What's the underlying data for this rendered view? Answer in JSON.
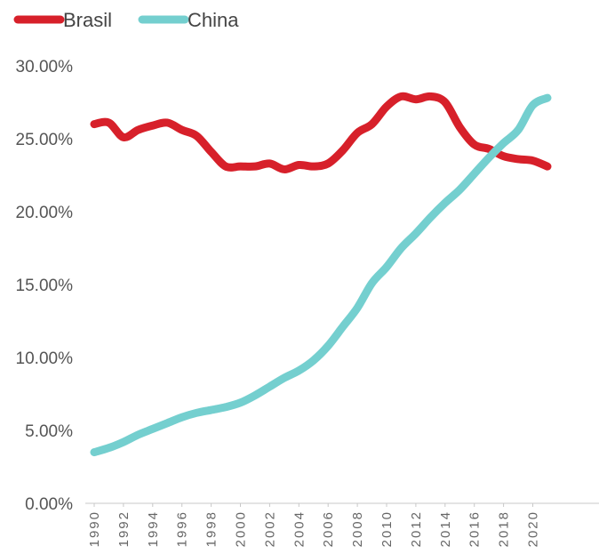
{
  "chart_data": {
    "type": "line",
    "title": "",
    "xlabel": "",
    "ylabel": "",
    "x": [
      1990,
      1991,
      1992,
      1993,
      1994,
      1995,
      1996,
      1997,
      1998,
      1999,
      2000,
      2001,
      2002,
      2003,
      2004,
      2005,
      2006,
      2007,
      2008,
      2009,
      2010,
      2011,
      2012,
      2013,
      2014,
      2015,
      2016,
      2017,
      2018,
      2019,
      2020,
      2021
    ],
    "xtick_labels": [
      "1990",
      "1992",
      "1994",
      "1996",
      "1998",
      "2000",
      "2002",
      "2004",
      "2006",
      "2008",
      "2010",
      "2012",
      "2014",
      "2016",
      "2018",
      "2020"
    ],
    "ylim": [
      0,
      30
    ],
    "ytick_labels": [
      "0.00%",
      "5.00%",
      "10.00%",
      "15.00%",
      "20.00%",
      "25.00%",
      "30.00%"
    ],
    "yticks": [
      0,
      5,
      10,
      15,
      20,
      25,
      30
    ],
    "grid": false,
    "legend_position": "top-left",
    "series": [
      {
        "name": "Brasil",
        "color": "#d7202a",
        "values": [
          26.0,
          26.1,
          25.1,
          25.6,
          25.9,
          26.1,
          25.6,
          25.2,
          24.1,
          23.1,
          23.1,
          23.1,
          23.3,
          22.9,
          23.2,
          23.1,
          23.3,
          24.2,
          25.4,
          26.0,
          27.2,
          27.9,
          27.7,
          27.9,
          27.5,
          25.8,
          24.6,
          24.3,
          23.8,
          23.6,
          23.5,
          23.1
        ]
      },
      {
        "name": "China",
        "color": "#74cfcf",
        "values": [
          3.5,
          3.8,
          4.2,
          4.7,
          5.1,
          5.5,
          5.9,
          6.2,
          6.4,
          6.6,
          6.9,
          7.4,
          8.0,
          8.6,
          9.1,
          9.8,
          10.8,
          12.1,
          13.4,
          15.1,
          16.2,
          17.5,
          18.5,
          19.6,
          20.6,
          21.5,
          22.6,
          23.7,
          24.7,
          25.6,
          27.3,
          27.8
        ]
      }
    ]
  }
}
